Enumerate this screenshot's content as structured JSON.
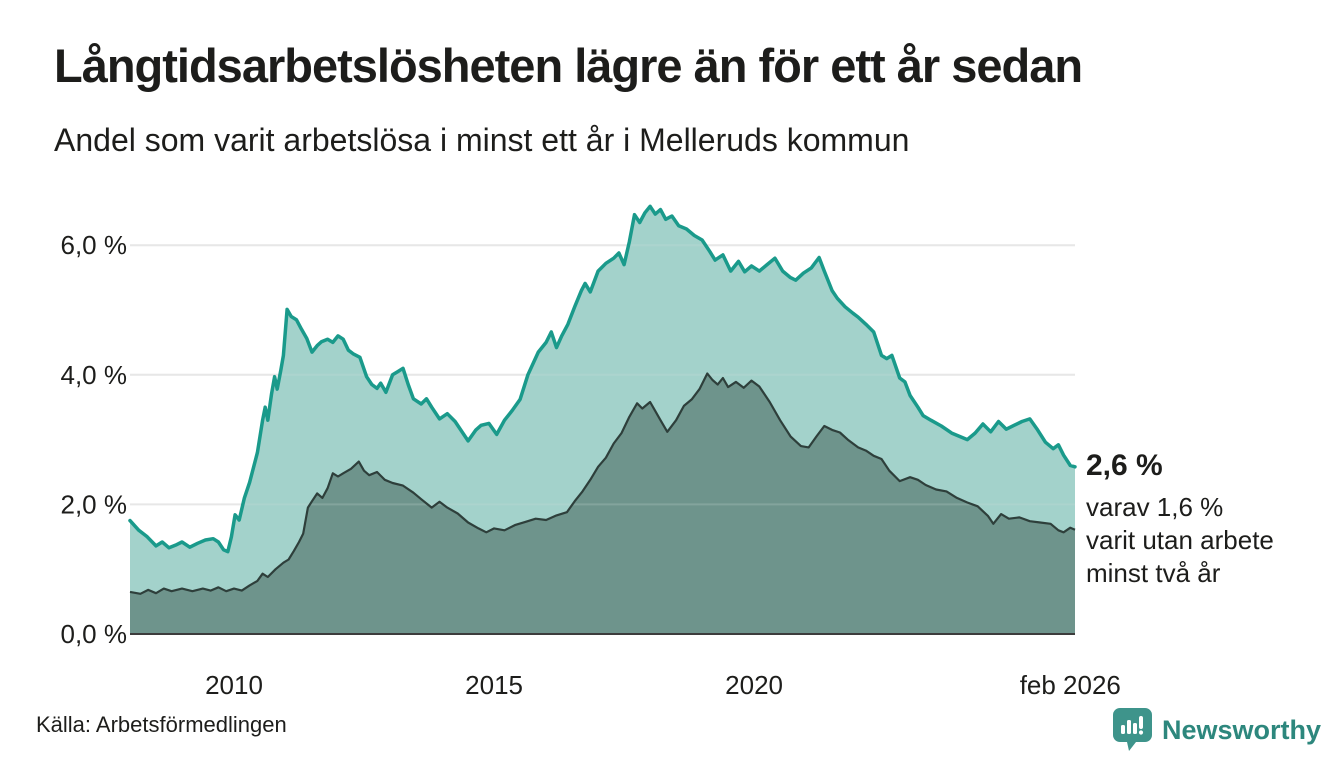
{
  "header": {
    "title": "Långtidsarbetslösheten lägre än för ett år sedan",
    "subtitle": "Andel som varit arbetslösa i minst ett år i Melleruds kommun"
  },
  "annotation": {
    "value": "2,6 %",
    "detail": [
      "varav 1,6 %",
      "varit utan arbete",
      "minst två år"
    ]
  },
  "footer": {
    "source": "Källa: Arbetsförmedlingen",
    "brand": "Newsworthy"
  },
  "colors": {
    "text": "#1d1d1b",
    "teal_line": "#1a9a8b",
    "light_fill": "rgba(143,200,191,0.82)",
    "dark_line": "#2e3f3b",
    "dark_fill": "rgba(101,137,129,0.85)",
    "gridline": "#e3e3e3",
    "grid_overlay": "rgba(255,255,255,0.15)",
    "axis_line": "#3c3c3c",
    "brand_icon": "#3e948b",
    "brand_text": "#2d877d"
  },
  "chart_data": {
    "type": "area",
    "title": "Långtidsarbetslösheten lägre än för ett år sedan",
    "subtitle": "Andel som varit arbetslösa i minst ett år i Melleruds kommun",
    "xlabel": "",
    "ylabel": "",
    "x_range": [
      2008.0,
      2026.17
    ],
    "ylim": [
      0,
      6.85
    ],
    "grid": true,
    "grid_values": [
      2,
      4,
      6
    ],
    "legend": "none",
    "y_ticks": [
      {
        "label": "0,0 %",
        "value": 0
      },
      {
        "label": "2,0 %",
        "value": 2
      },
      {
        "label": "4,0 %",
        "value": 4
      },
      {
        "label": "6,0 %",
        "value": 6
      }
    ],
    "x_ticks": [
      {
        "label": "2010",
        "year": 2010
      },
      {
        "label": "2015",
        "year": 2015
      },
      {
        "label": "2020",
        "year": 2020
      },
      {
        "label": "feb 2026",
        "year": 2026.08
      }
    ],
    "last_point_labels": {
      "minst_ett_ar": "2,6 %",
      "minst_tva_ar": "1,6 %"
    },
    "series": [
      {
        "name": "arbetslösa minst ett år",
        "role": "total",
        "points": [
          [
            2008.0,
            1.75
          ],
          [
            2008.17,
            1.6
          ],
          [
            2008.33,
            1.5
          ],
          [
            2008.5,
            1.36
          ],
          [
            2008.62,
            1.42
          ],
          [
            2008.75,
            1.33
          ],
          [
            2008.9,
            1.38
          ],
          [
            2009.0,
            1.42
          ],
          [
            2009.15,
            1.34
          ],
          [
            2009.3,
            1.4
          ],
          [
            2009.45,
            1.45
          ],
          [
            2009.6,
            1.47
          ],
          [
            2009.7,
            1.42
          ],
          [
            2009.8,
            1.3
          ],
          [
            2009.88,
            1.27
          ],
          [
            2009.95,
            1.5
          ],
          [
            2010.02,
            1.84
          ],
          [
            2010.1,
            1.76
          ],
          [
            2010.2,
            2.1
          ],
          [
            2010.3,
            2.34
          ],
          [
            2010.45,
            2.8
          ],
          [
            2010.55,
            3.3
          ],
          [
            2010.6,
            3.5
          ],
          [
            2010.65,
            3.3
          ],
          [
            2010.72,
            3.7
          ],
          [
            2010.78,
            3.97
          ],
          [
            2010.83,
            3.78
          ],
          [
            2010.9,
            4.07
          ],
          [
            2010.95,
            4.3
          ],
          [
            2011.02,
            5.01
          ],
          [
            2011.1,
            4.9
          ],
          [
            2011.2,
            4.85
          ],
          [
            2011.3,
            4.7
          ],
          [
            2011.4,
            4.56
          ],
          [
            2011.5,
            4.35
          ],
          [
            2011.6,
            4.45
          ],
          [
            2011.68,
            4.51
          ],
          [
            2011.8,
            4.55
          ],
          [
            2011.9,
            4.5
          ],
          [
            2012.0,
            4.6
          ],
          [
            2012.1,
            4.55
          ],
          [
            2012.2,
            4.38
          ],
          [
            2012.3,
            4.32
          ],
          [
            2012.42,
            4.27
          ],
          [
            2012.55,
            3.97
          ],
          [
            2012.65,
            3.85
          ],
          [
            2012.75,
            3.79
          ],
          [
            2012.82,
            3.87
          ],
          [
            2012.92,
            3.73
          ],
          [
            2013.05,
            4.0
          ],
          [
            2013.15,
            4.05
          ],
          [
            2013.25,
            4.1
          ],
          [
            2013.35,
            3.85
          ],
          [
            2013.45,
            3.63
          ],
          [
            2013.6,
            3.55
          ],
          [
            2013.7,
            3.63
          ],
          [
            2013.8,
            3.5
          ],
          [
            2013.95,
            3.32
          ],
          [
            2014.1,
            3.4
          ],
          [
            2014.25,
            3.28
          ],
          [
            2014.4,
            3.1
          ],
          [
            2014.5,
            2.98
          ],
          [
            2014.65,
            3.15
          ],
          [
            2014.75,
            3.22
          ],
          [
            2014.9,
            3.25
          ],
          [
            2015.05,
            3.08
          ],
          [
            2015.2,
            3.3
          ],
          [
            2015.35,
            3.45
          ],
          [
            2015.5,
            3.62
          ],
          [
            2015.65,
            4.0
          ],
          [
            2015.85,
            4.35
          ],
          [
            2016.0,
            4.5
          ],
          [
            2016.1,
            4.66
          ],
          [
            2016.2,
            4.42
          ],
          [
            2016.3,
            4.6
          ],
          [
            2016.42,
            4.78
          ],
          [
            2016.55,
            5.05
          ],
          [
            2016.68,
            5.3
          ],
          [
            2016.75,
            5.41
          ],
          [
            2016.85,
            5.28
          ],
          [
            2017.0,
            5.6
          ],
          [
            2017.15,
            5.72
          ],
          [
            2017.3,
            5.8
          ],
          [
            2017.4,
            5.88
          ],
          [
            2017.5,
            5.7
          ],
          [
            2017.6,
            6.05
          ],
          [
            2017.7,
            6.47
          ],
          [
            2017.8,
            6.35
          ],
          [
            2017.9,
            6.5
          ],
          [
            2018.0,
            6.6
          ],
          [
            2018.1,
            6.48
          ],
          [
            2018.2,
            6.55
          ],
          [
            2018.3,
            6.4
          ],
          [
            2018.42,
            6.45
          ],
          [
            2018.55,
            6.3
          ],
          [
            2018.7,
            6.25
          ],
          [
            2018.85,
            6.15
          ],
          [
            2019.0,
            6.08
          ],
          [
            2019.15,
            5.9
          ],
          [
            2019.25,
            5.77
          ],
          [
            2019.4,
            5.85
          ],
          [
            2019.55,
            5.6
          ],
          [
            2019.7,
            5.75
          ],
          [
            2019.82,
            5.59
          ],
          [
            2019.95,
            5.68
          ],
          [
            2020.1,
            5.6
          ],
          [
            2020.25,
            5.7
          ],
          [
            2020.4,
            5.8
          ],
          [
            2020.55,
            5.6
          ],
          [
            2020.7,
            5.5
          ],
          [
            2020.8,
            5.46
          ],
          [
            2020.95,
            5.57
          ],
          [
            2021.1,
            5.65
          ],
          [
            2021.25,
            5.81
          ],
          [
            2021.35,
            5.6
          ],
          [
            2021.5,
            5.3
          ],
          [
            2021.6,
            5.18
          ],
          [
            2021.75,
            5.05
          ],
          [
            2021.9,
            4.95
          ],
          [
            2022.0,
            4.89
          ],
          [
            2022.15,
            4.78
          ],
          [
            2022.3,
            4.66
          ],
          [
            2022.45,
            4.3
          ],
          [
            2022.55,
            4.25
          ],
          [
            2022.65,
            4.3
          ],
          [
            2022.8,
            3.95
          ],
          [
            2022.9,
            3.89
          ],
          [
            2023.0,
            3.68
          ],
          [
            2023.15,
            3.5
          ],
          [
            2023.25,
            3.37
          ],
          [
            2023.4,
            3.3
          ],
          [
            2023.6,
            3.21
          ],
          [
            2023.8,
            3.1
          ],
          [
            2023.95,
            3.05
          ],
          [
            2024.1,
            3.0
          ],
          [
            2024.25,
            3.1
          ],
          [
            2024.4,
            3.24
          ],
          [
            2024.55,
            3.12
          ],
          [
            2024.7,
            3.28
          ],
          [
            2024.85,
            3.16
          ],
          [
            2025.0,
            3.22
          ],
          [
            2025.15,
            3.28
          ],
          [
            2025.3,
            3.32
          ],
          [
            2025.45,
            3.15
          ],
          [
            2025.6,
            2.96
          ],
          [
            2025.75,
            2.86
          ],
          [
            2025.85,
            2.92
          ],
          [
            2025.95,
            2.76
          ],
          [
            2026.08,
            2.6
          ],
          [
            2026.17,
            2.58
          ]
        ]
      },
      {
        "name": "varit utan arbete minst två år",
        "role": "subset",
        "points": [
          [
            2008.0,
            0.65
          ],
          [
            2008.2,
            0.62
          ],
          [
            2008.35,
            0.68
          ],
          [
            2008.5,
            0.63
          ],
          [
            2008.65,
            0.7
          ],
          [
            2008.8,
            0.66
          ],
          [
            2009.0,
            0.7
          ],
          [
            2009.2,
            0.66
          ],
          [
            2009.4,
            0.7
          ],
          [
            2009.55,
            0.67
          ],
          [
            2009.7,
            0.72
          ],
          [
            2009.85,
            0.66
          ],
          [
            2010.0,
            0.7
          ],
          [
            2010.15,
            0.67
          ],
          [
            2010.3,
            0.75
          ],
          [
            2010.45,
            0.82
          ],
          [
            2010.55,
            0.93
          ],
          [
            2010.65,
            0.88
          ],
          [
            2010.8,
            1.0
          ],
          [
            2010.95,
            1.1
          ],
          [
            2011.05,
            1.15
          ],
          [
            2011.15,
            1.28
          ],
          [
            2011.25,
            1.42
          ],
          [
            2011.33,
            1.55
          ],
          [
            2011.42,
            1.95
          ],
          [
            2011.5,
            2.05
          ],
          [
            2011.6,
            2.17
          ],
          [
            2011.7,
            2.1
          ],
          [
            2011.8,
            2.25
          ],
          [
            2011.9,
            2.48
          ],
          [
            2012.0,
            2.43
          ],
          [
            2012.1,
            2.48
          ],
          [
            2012.25,
            2.55
          ],
          [
            2012.4,
            2.66
          ],
          [
            2012.5,
            2.52
          ],
          [
            2012.6,
            2.45
          ],
          [
            2012.75,
            2.5
          ],
          [
            2012.9,
            2.38
          ],
          [
            2013.05,
            2.33
          ],
          [
            2013.25,
            2.29
          ],
          [
            2013.45,
            2.18
          ],
          [
            2013.6,
            2.08
          ],
          [
            2013.8,
            1.95
          ],
          [
            2013.95,
            2.04
          ],
          [
            2014.1,
            1.95
          ],
          [
            2014.3,
            1.86
          ],
          [
            2014.5,
            1.72
          ],
          [
            2014.7,
            1.63
          ],
          [
            2014.85,
            1.57
          ],
          [
            2015.0,
            1.63
          ],
          [
            2015.2,
            1.6
          ],
          [
            2015.4,
            1.68
          ],
          [
            2015.6,
            1.73
          ],
          [
            2015.8,
            1.78
          ],
          [
            2016.0,
            1.76
          ],
          [
            2016.2,
            1.83
          ],
          [
            2016.4,
            1.88
          ],
          [
            2016.55,
            2.05
          ],
          [
            2016.7,
            2.2
          ],
          [
            2016.85,
            2.38
          ],
          [
            2017.0,
            2.58
          ],
          [
            2017.15,
            2.72
          ],
          [
            2017.3,
            2.94
          ],
          [
            2017.45,
            3.1
          ],
          [
            2017.6,
            3.35
          ],
          [
            2017.75,
            3.56
          ],
          [
            2017.85,
            3.48
          ],
          [
            2018.0,
            3.58
          ],
          [
            2018.1,
            3.44
          ],
          [
            2018.2,
            3.3
          ],
          [
            2018.33,
            3.12
          ],
          [
            2018.5,
            3.3
          ],
          [
            2018.65,
            3.52
          ],
          [
            2018.8,
            3.62
          ],
          [
            2018.95,
            3.78
          ],
          [
            2019.1,
            4.02
          ],
          [
            2019.2,
            3.92
          ],
          [
            2019.3,
            3.85
          ],
          [
            2019.4,
            3.95
          ],
          [
            2019.5,
            3.81
          ],
          [
            2019.65,
            3.89
          ],
          [
            2019.8,
            3.8
          ],
          [
            2019.95,
            3.91
          ],
          [
            2020.1,
            3.82
          ],
          [
            2020.3,
            3.58
          ],
          [
            2020.5,
            3.3
          ],
          [
            2020.7,
            3.05
          ],
          [
            2020.9,
            2.9
          ],
          [
            2021.05,
            2.88
          ],
          [
            2021.2,
            3.05
          ],
          [
            2021.35,
            3.21
          ],
          [
            2021.5,
            3.15
          ],
          [
            2021.65,
            3.11
          ],
          [
            2021.8,
            3.0
          ],
          [
            2022.0,
            2.88
          ],
          [
            2022.15,
            2.83
          ],
          [
            2022.3,
            2.75
          ],
          [
            2022.45,
            2.7
          ],
          [
            2022.6,
            2.52
          ],
          [
            2022.8,
            2.36
          ],
          [
            2023.0,
            2.42
          ],
          [
            2023.15,
            2.38
          ],
          [
            2023.3,
            2.3
          ],
          [
            2023.5,
            2.23
          ],
          [
            2023.7,
            2.2
          ],
          [
            2023.9,
            2.1
          ],
          [
            2024.1,
            2.03
          ],
          [
            2024.3,
            1.97
          ],
          [
            2024.5,
            1.82
          ],
          [
            2024.6,
            1.7
          ],
          [
            2024.75,
            1.85
          ],
          [
            2024.9,
            1.78
          ],
          [
            2025.1,
            1.8
          ],
          [
            2025.3,
            1.74
          ],
          [
            2025.5,
            1.72
          ],
          [
            2025.7,
            1.7
          ],
          [
            2025.85,
            1.6
          ],
          [
            2025.95,
            1.57
          ],
          [
            2026.08,
            1.64
          ],
          [
            2026.17,
            1.61
          ]
        ]
      }
    ]
  }
}
